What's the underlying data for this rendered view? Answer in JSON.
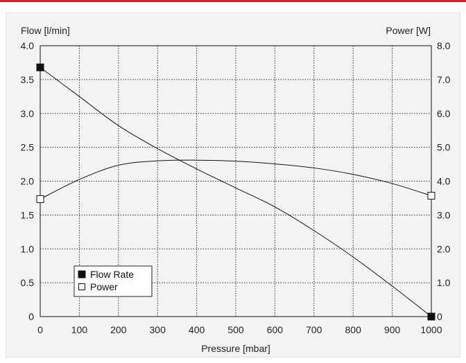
{
  "colors": {
    "accent": "#d0202e"
  },
  "chart_data": {
    "type": "line",
    "xlabel": "Pressure [mbar]",
    "ylabel_left": "Flow [l/min]",
    "ylabel_right": "Power [W]",
    "xlim": [
      0,
      1000
    ],
    "ylim_left": [
      0,
      4.0
    ],
    "ylim_right": [
      0,
      8.0
    ],
    "x_ticks": [
      "0",
      "100",
      "200",
      "300",
      "400",
      "500",
      "600",
      "700",
      "800",
      "900",
      "1000"
    ],
    "y_left_ticks": [
      "0",
      "0.5",
      "1.0",
      "1.5",
      "2.0",
      "2.5",
      "3.0",
      "3.5",
      "4.0"
    ],
    "y_right_ticks": [
      "0",
      "1.0",
      "2.0",
      "3.0",
      "4.0",
      "5.0",
      "6.0",
      "7.0",
      "8.0"
    ],
    "grid": true,
    "legend_position": "bottom-left",
    "series": [
      {
        "name": "Flow Rate",
        "axis": "left",
        "marker": "filled-square",
        "x": [
          0,
          100,
          200,
          300,
          400,
          500,
          600,
          700,
          800,
          900,
          1000
        ],
        "y": [
          3.68,
          3.25,
          2.82,
          2.48,
          2.18,
          1.9,
          1.62,
          1.27,
          0.88,
          0.45,
          0.0
        ]
      },
      {
        "name": "Power",
        "axis": "right",
        "marker": "open-square",
        "x": [
          0,
          100,
          200,
          300,
          400,
          500,
          600,
          700,
          800,
          900,
          1000
        ],
        "y": [
          3.47,
          4.05,
          4.47,
          4.6,
          4.62,
          4.59,
          4.51,
          4.39,
          4.2,
          3.93,
          3.57
        ]
      }
    ]
  }
}
